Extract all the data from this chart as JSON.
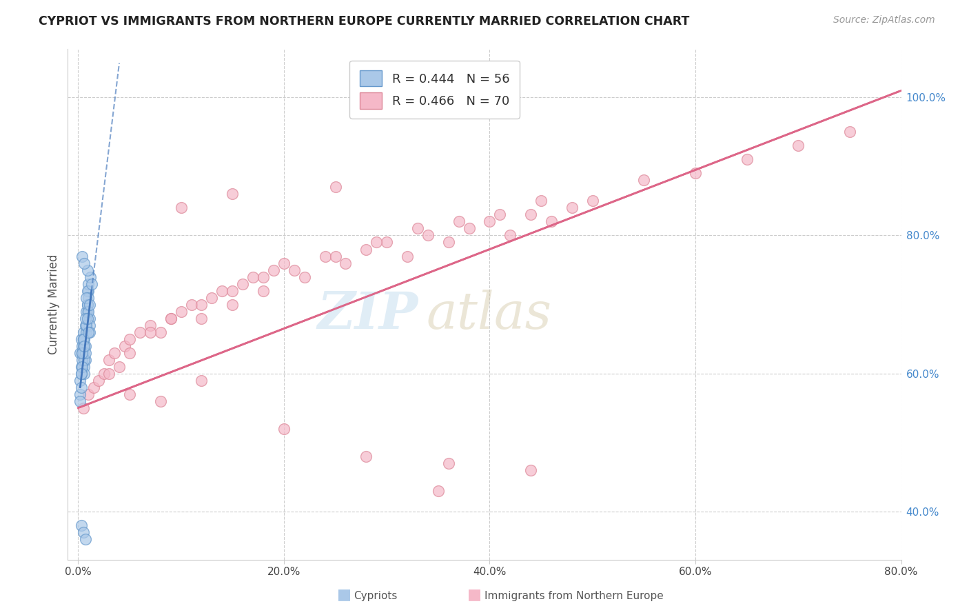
{
  "title": "CYPRIOT VS IMMIGRANTS FROM NORTHERN EUROPE CURRENTLY MARRIED CORRELATION CHART",
  "source": "Source: ZipAtlas.com",
  "ylabel": "Currently Married",
  "x_tick_labels": [
    "0.0%",
    "20.0%",
    "40.0%",
    "60.0%",
    "80.0%"
  ],
  "x_tick_values": [
    0.0,
    20.0,
    40.0,
    60.0,
    80.0
  ],
  "y_tick_labels": [
    "40.0%",
    "60.0%",
    "80.0%",
    "100.0%"
  ],
  "y_tick_values": [
    40.0,
    60.0,
    80.0,
    100.0
  ],
  "xlim": [
    -1.0,
    80.0
  ],
  "ylim": [
    33.0,
    107.0
  ],
  "blue_color": "#aac8e8",
  "blue_edge_color": "#6699cc",
  "blue_line_color": "#4477bb",
  "pink_color": "#f5b8c8",
  "pink_edge_color": "#dd8899",
  "pink_line_color": "#dd6688",
  "grid_color": "#cccccc",
  "background_color": "#ffffff",
  "cypriot_x": [
    0.2,
    0.3,
    0.4,
    0.5,
    0.6,
    0.7,
    0.8,
    0.9,
    1.0,
    1.1,
    0.2,
    0.3,
    0.4,
    0.5,
    0.6,
    0.7,
    0.8,
    0.9,
    1.0,
    1.1,
    0.2,
    0.3,
    0.4,
    0.5,
    0.6,
    0.7,
    0.8,
    0.9,
    1.0,
    1.2,
    0.2,
    0.3,
    0.4,
    0.5,
    0.6,
    0.7,
    0.8,
    0.9,
    1.0,
    1.1,
    0.3,
    0.4,
    0.5,
    0.6,
    0.7,
    0.8,
    0.9,
    1.0,
    1.1,
    1.3,
    0.3,
    0.5,
    0.7,
    0.9,
    0.4,
    0.6
  ],
  "cypriot_y": [
    63.0,
    65.0,
    64.0,
    66.0,
    61.0,
    64.0,
    67.0,
    69.0,
    72.0,
    68.0,
    59.0,
    61.0,
    63.0,
    65.0,
    60.0,
    62.0,
    66.0,
    70.0,
    73.0,
    67.0,
    57.0,
    60.0,
    62.0,
    64.0,
    62.0,
    67.0,
    69.0,
    72.0,
    71.0,
    74.0,
    56.0,
    58.0,
    61.0,
    63.0,
    65.0,
    63.0,
    67.0,
    70.0,
    69.0,
    66.0,
    60.0,
    63.0,
    65.0,
    64.0,
    68.0,
    71.0,
    68.0,
    66.0,
    70.0,
    73.0,
    38.0,
    37.0,
    36.0,
    75.0,
    77.0,
    76.0
  ],
  "immigrant_x": [
    0.5,
    1.0,
    1.5,
    2.0,
    2.5,
    3.0,
    3.5,
    4.0,
    4.5,
    5.0,
    6.0,
    7.0,
    8.0,
    9.0,
    10.0,
    11.0,
    12.0,
    13.0,
    14.0,
    15.0,
    16.0,
    17.0,
    18.0,
    19.0,
    20.0,
    22.0,
    24.0,
    26.0,
    28.0,
    30.0,
    32.0,
    34.0,
    36.0,
    38.0,
    40.0,
    42.0,
    44.0,
    46.0,
    48.0,
    50.0,
    3.0,
    5.0,
    7.0,
    9.0,
    12.0,
    15.0,
    18.0,
    21.0,
    25.0,
    29.0,
    33.0,
    37.0,
    41.0,
    45.0,
    55.0,
    60.0,
    65.0,
    70.0,
    75.0,
    5.0,
    8.0,
    12.0,
    20.0,
    28.0,
    36.0,
    44.0,
    10.0,
    15.0,
    25.0,
    35.0
  ],
  "immigrant_y": [
    55.0,
    57.0,
    58.0,
    59.0,
    60.0,
    62.0,
    63.0,
    61.0,
    64.0,
    65.0,
    66.0,
    67.0,
    66.0,
    68.0,
    69.0,
    70.0,
    68.0,
    71.0,
    72.0,
    70.0,
    73.0,
    74.0,
    72.0,
    75.0,
    76.0,
    74.0,
    77.0,
    76.0,
    78.0,
    79.0,
    77.0,
    80.0,
    79.0,
    81.0,
    82.0,
    80.0,
    83.0,
    82.0,
    84.0,
    85.0,
    60.0,
    63.0,
    66.0,
    68.0,
    70.0,
    72.0,
    74.0,
    75.0,
    77.0,
    79.0,
    81.0,
    82.0,
    83.0,
    85.0,
    88.0,
    89.0,
    91.0,
    93.0,
    95.0,
    57.0,
    56.0,
    59.0,
    52.0,
    48.0,
    47.0,
    46.0,
    84.0,
    86.0,
    87.0,
    43.0
  ],
  "pink_trend_x0": 0.0,
  "pink_trend_y0": 55.0,
  "pink_trend_x1": 80.0,
  "pink_trend_y1": 101.0,
  "blue_solid_x0": 0.2,
  "blue_solid_y0": 58.0,
  "blue_solid_x1": 1.3,
  "blue_solid_y1": 72.0,
  "blue_dash_x0": 1.3,
  "blue_dash_y0": 72.0,
  "blue_dash_x1": 4.0,
  "blue_dash_y1": 105.0
}
